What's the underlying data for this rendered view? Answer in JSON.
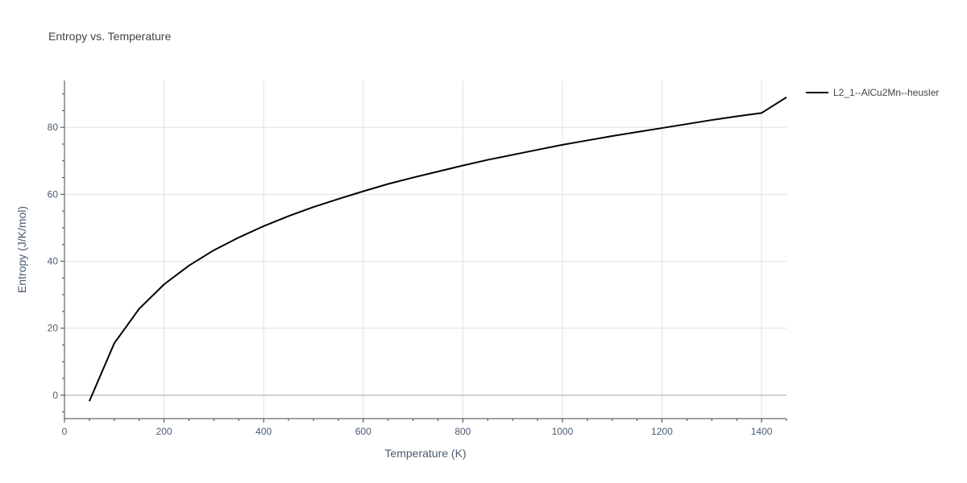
{
  "chart_data": {
    "type": "line",
    "title": "Entropy vs. Temperature",
    "xlabel": "Temperature (K)",
    "ylabel": "Entropy (J/K/mol)",
    "xlim": [
      0,
      1450
    ],
    "ylim": [
      -7,
      94
    ],
    "x_ticks": [
      0,
      200,
      400,
      600,
      800,
      1000,
      1200,
      1400
    ],
    "y_ticks": [
      0,
      20,
      40,
      60,
      80
    ],
    "grid": true,
    "legend_position": "top-right",
    "series": [
      {
        "name": "L2_1--AlCu2Mn--heusler",
        "color": "#000000",
        "x": [
          50,
          100,
          150,
          200,
          250,
          300,
          350,
          400,
          450,
          500,
          550,
          600,
          650,
          700,
          750,
          800,
          850,
          900,
          950,
          1000,
          1050,
          1100,
          1150,
          1200,
          1250,
          1300,
          1350,
          1400,
          1450
        ],
        "y": [
          -1.8,
          15.5,
          25.8,
          33.1,
          38.7,
          43.3,
          47.1,
          50.5,
          53.5,
          56.2,
          58.6,
          60.9,
          63.1,
          65.0,
          66.8,
          68.6,
          70.3,
          71.8,
          73.3,
          74.8,
          76.1,
          77.4,
          78.6,
          79.8,
          81.0,
          82.2,
          83.3,
          84.3,
          89.0
        ]
      }
    ]
  }
}
